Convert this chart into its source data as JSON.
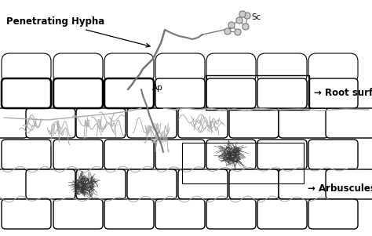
{
  "bg_color": "#ffffff",
  "fig_width": 4.74,
  "fig_height": 3.01,
  "dpi": 100,
  "labels": {
    "penetrating_hypha": "Penetrating Hypha",
    "sc": "Sc",
    "ap": "Ap",
    "root_surface": "→ Root surface",
    "arbuscules": "→ Arbuscules"
  },
  "cell_edge": "#000000",
  "cell_face": "#ffffff",
  "hypha_color": "#aaaaaa",
  "hypha_dark": "#777777"
}
